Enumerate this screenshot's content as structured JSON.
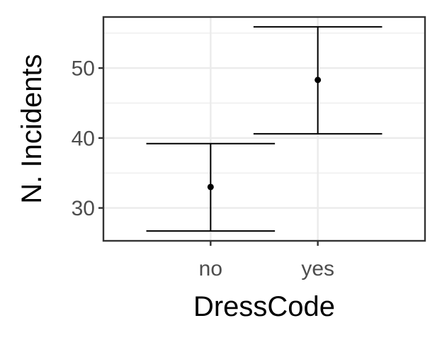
{
  "chart_data": {
    "type": "scatter",
    "title": "",
    "xlabel": "DressCode",
    "ylabel": "N. Incidents",
    "categories": [
      "no",
      "yes"
    ],
    "series": [
      {
        "values": [
          33.0,
          48.3
        ],
        "lower": [
          26.7,
          40.6
        ],
        "upper": [
          39.2,
          55.9
        ]
      }
    ],
    "ylim": [
      25.3,
      57.3
    ],
    "yticks": [
      30,
      40,
      50
    ],
    "ytick_labels": [
      "30",
      "40",
      "50"
    ],
    "grid": true,
    "legend": "none",
    "colors": {
      "point": "#000000",
      "errorbar": "#000000",
      "grid": "#ebebeb",
      "panel_border": "#333333",
      "tick_text": "#4d4d4d"
    }
  }
}
